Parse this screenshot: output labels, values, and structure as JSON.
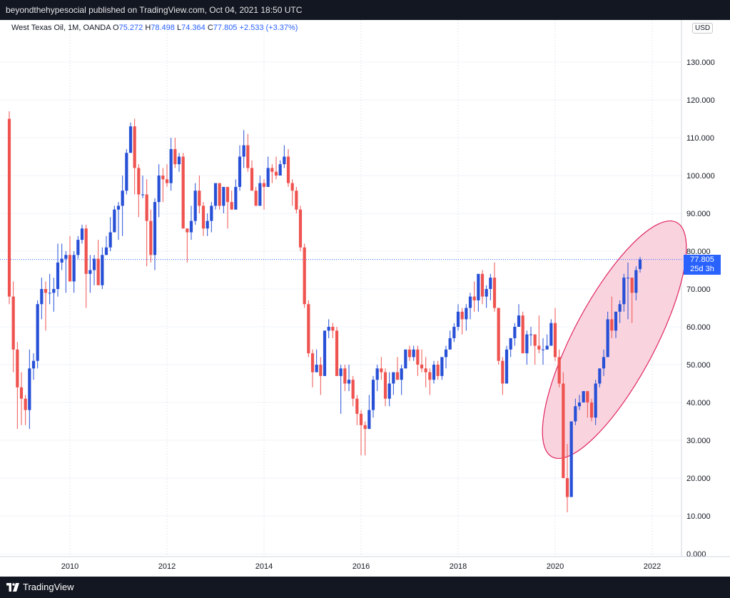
{
  "header": {
    "published_text": "beyondthehypesocial published on TradingView.com, Oct 04, 2021 18:50 UTC"
  },
  "legend": {
    "symbol": "West Texas Oil, 1M, OANDA",
    "o_label": "O",
    "o_value": "75.272",
    "h_label": "H",
    "h_value": "78.498",
    "l_label": "L",
    "l_value": "74.364",
    "c_label": "C",
    "c_value": "77.805",
    "change": "+2.533 (+3.37%)"
  },
  "currency": "USD",
  "price_tag": {
    "price": "77.805",
    "countdown": "25d 3h"
  },
  "footer": {
    "brand": "TradingView"
  },
  "colors": {
    "up": "#2750d6",
    "down": "#ef5350",
    "ellipse_fill": "#f8cdd9",
    "ellipse_stroke": "#e0245e",
    "accent": "#2962ff"
  },
  "chart_data": {
    "type": "candlestick",
    "interval": "1M",
    "x_ticks": [
      "2010",
      "2012",
      "2014",
      "2016",
      "2018",
      "2020",
      "2022"
    ],
    "y_ticks": [
      "0.000",
      "10.000",
      "20.000",
      "30.000",
      "40.000",
      "50.000",
      "60.000",
      "70.000",
      "80.000",
      "90.000",
      "100.000",
      "110.000",
      "120.000",
      "130.000"
    ],
    "ylim": [
      0,
      140
    ],
    "xlim": [
      "2008-09",
      "2022-09"
    ],
    "grid": true,
    "annotation": {
      "type": "ellipse",
      "around": "2020-06 to 2021-10"
    },
    "last_price_line": 77.805,
    "ohlc": [
      [
        "2008-10",
        115,
        117,
        66,
        68
      ],
      [
        "2008-11",
        68,
        72,
        48,
        54
      ],
      [
        "2008-12",
        54,
        56,
        33,
        44
      ],
      [
        "2009-01",
        44,
        48,
        34,
        41
      ],
      [
        "2009-02",
        41,
        42,
        34,
        38
      ],
      [
        "2009-03",
        38,
        54,
        33,
        49
      ],
      [
        "2009-04",
        49,
        53,
        46,
        51
      ],
      [
        "2009-05",
        51,
        67,
        49,
        66
      ],
      [
        "2009-06",
        66,
        73,
        62,
        70
      ],
      [
        "2009-07",
        70,
        72,
        59,
        69
      ],
      [
        "2009-08",
        69,
        74,
        66,
        69
      ],
      [
        "2009-09",
        69,
        73,
        64,
        70
      ],
      [
        "2009-10",
        70,
        82,
        68,
        77
      ],
      [
        "2009-11",
        77,
        82,
        75,
        78
      ],
      [
        "2009-12",
        78,
        80,
        69,
        79
      ],
      [
        "2010-01",
        79,
        84,
        72,
        72
      ],
      [
        "2010-02",
        72,
        80,
        69,
        79
      ],
      [
        "2010-03",
        79,
        84,
        78,
        83
      ],
      [
        "2010-04",
        83,
        87,
        82,
        86
      ],
      [
        "2010-05",
        86,
        87,
        65,
        74
      ],
      [
        "2010-06",
        74,
        79,
        69,
        75
      ],
      [
        "2010-07",
        75,
        79,
        71,
        78
      ],
      [
        "2010-08",
        78,
        83,
        71,
        71
      ],
      [
        "2010-09",
        71,
        81,
        70,
        79
      ],
      [
        "2010-10",
        79,
        84,
        79,
        81
      ],
      [
        "2010-11",
        81,
        89,
        80,
        85
      ],
      [
        "2010-12",
        85,
        92,
        85,
        91
      ],
      [
        "2011-01",
        91,
        93,
        83,
        92
      ],
      [
        "2011-02",
        92,
        100,
        84,
        96
      ],
      [
        "2011-03",
        96,
        107,
        95,
        106
      ],
      [
        "2011-04",
        106,
        114,
        106,
        113
      ],
      [
        "2011-05",
        113,
        115,
        95,
        102
      ],
      [
        "2011-06",
        102,
        103,
        89,
        95
      ],
      [
        "2011-07",
        95,
        100,
        94,
        95
      ],
      [
        "2011-08",
        95,
        99,
        76,
        88
      ],
      [
        "2011-09",
        88,
        91,
        77,
        79
      ],
      [
        "2011-10",
        79,
        94,
        75,
        93
      ],
      [
        "2011-11",
        93,
        103,
        89,
        100
      ],
      [
        "2011-12",
        100,
        102,
        93,
        99
      ],
      [
        "2012-01",
        99,
        103,
        97,
        98
      ],
      [
        "2012-02",
        98,
        110,
        96,
        107
      ],
      [
        "2012-03",
        107,
        110,
        102,
        103
      ],
      [
        "2012-04",
        103,
        106,
        101,
        105
      ],
      [
        "2012-05",
        105,
        106,
        86,
        86
      ],
      [
        "2012-06",
        86,
        86,
        77,
        85
      ],
      [
        "2012-07",
        85,
        92,
        83,
        88
      ],
      [
        "2012-08",
        88,
        98,
        87,
        96
      ],
      [
        "2012-09",
        96,
        100,
        90,
        92
      ],
      [
        "2012-10",
        92,
        93,
        84,
        86
      ],
      [
        "2012-11",
        86,
        90,
        84,
        88
      ],
      [
        "2012-12",
        88,
        93,
        85,
        92
      ],
      [
        "2013-01",
        92,
        98,
        91,
        98
      ],
      [
        "2013-02",
        98,
        98,
        91,
        92
      ],
      [
        "2013-03",
        92,
        97,
        90,
        97
      ],
      [
        "2013-04",
        97,
        97,
        86,
        93
      ],
      [
        "2013-05",
        93,
        96,
        91,
        91
      ],
      [
        "2013-06",
        91,
        99,
        91,
        97
      ],
      [
        "2013-07",
        97,
        108,
        96,
        105
      ],
      [
        "2013-08",
        105,
        112,
        102,
        108
      ],
      [
        "2013-09",
        108,
        111,
        101,
        102
      ],
      [
        "2013-10",
        102,
        104,
        96,
        96
      ],
      [
        "2013-11",
        96,
        97,
        92,
        92
      ],
      [
        "2013-12",
        92,
        100,
        92,
        98
      ],
      [
        "2014-01",
        98,
        99,
        91,
        97
      ],
      [
        "2014-02",
        97,
        105,
        97,
        102
      ],
      [
        "2014-03",
        102,
        103,
        98,
        101
      ],
      [
        "2014-04",
        101,
        105,
        99,
        100
      ],
      [
        "2014-05",
        100,
        104,
        100,
        103
      ],
      [
        "2014-06",
        103,
        108,
        102,
        105
      ],
      [
        "2014-07",
        105,
        107,
        97,
        98
      ],
      [
        "2014-08",
        98,
        99,
        92,
        96
      ],
      [
        "2014-09",
        96,
        97,
        90,
        91
      ],
      [
        "2014-10",
        91,
        92,
        80,
        81
      ],
      [
        "2014-11",
        81,
        82,
        65,
        66
      ],
      [
        "2014-12",
        66,
        67,
        52,
        53
      ],
      [
        "2015-01",
        53,
        54,
        44,
        48
      ],
      [
        "2015-02",
        48,
        54,
        48,
        50
      ],
      [
        "2015-03",
        50,
        52,
        42,
        47
      ],
      [
        "2015-04",
        47,
        59,
        47,
        59
      ],
      [
        "2015-05",
        59,
        62,
        57,
        60
      ],
      [
        "2015-06",
        60,
        61,
        57,
        59
      ],
      [
        "2015-07",
        59,
        60,
        47,
        47
      ],
      [
        "2015-08",
        47,
        50,
        37,
        49
      ],
      [
        "2015-09",
        49,
        50,
        43,
        45
      ],
      [
        "2015-10",
        45,
        50,
        43,
        46
      ],
      [
        "2015-11",
        46,
        47,
        39,
        41
      ],
      [
        "2015-12",
        41,
        42,
        34,
        37
      ],
      [
        "2016-01",
        37,
        38,
        26,
        34
      ],
      [
        "2016-02",
        34,
        35,
        26,
        33
      ],
      [
        "2016-03",
        33,
        42,
        33,
        38
      ],
      [
        "2016-04",
        38,
        47,
        36,
        46
      ],
      [
        "2016-05",
        46,
        50,
        43,
        49
      ],
      [
        "2016-06",
        49,
        52,
        46,
        48
      ],
      [
        "2016-07",
        48,
        49,
        39,
        41
      ],
      [
        "2016-08",
        41,
        48,
        39,
        45
      ],
      [
        "2016-09",
        45,
        48,
        42,
        48
      ],
      [
        "2016-10",
        48,
        52,
        46,
        46
      ],
      [
        "2016-11",
        46,
        50,
        42,
        49
      ],
      [
        "2016-12",
        49,
        54,
        49,
        54
      ],
      [
        "2017-01",
        54,
        55,
        51,
        52
      ],
      [
        "2017-02",
        52,
        55,
        51,
        54
      ],
      [
        "2017-03",
        54,
        55,
        47,
        50
      ],
      [
        "2017-04",
        50,
        54,
        48,
        49
      ],
      [
        "2017-05",
        49,
        52,
        44,
        48
      ],
      [
        "2017-06",
        48,
        49,
        42,
        46
      ],
      [
        "2017-07",
        46,
        51,
        45,
        50
      ],
      [
        "2017-08",
        50,
        51,
        46,
        47
      ],
      [
        "2017-09",
        47,
        52,
        46,
        52
      ],
      [
        "2017-10",
        52,
        55,
        49,
        54
      ],
      [
        "2017-11",
        54,
        59,
        54,
        57
      ],
      [
        "2017-12",
        57,
        61,
        56,
        60
      ],
      [
        "2018-01",
        60,
        66,
        59,
        64
      ],
      [
        "2018-02",
        64,
        65,
        58,
        62
      ],
      [
        "2018-03",
        62,
        66,
        59,
        65
      ],
      [
        "2018-04",
        65,
        69,
        62,
        68
      ],
      [
        "2018-05",
        68,
        72,
        64,
        67
      ],
      [
        "2018-06",
        67,
        74,
        64,
        74
      ],
      [
        "2018-07",
        74,
        75,
        66,
        68
      ],
      [
        "2018-08",
        68,
        71,
        65,
        70
      ],
      [
        "2018-09",
        70,
        74,
        67,
        73
      ],
      [
        "2018-10",
        73,
        77,
        64,
        65
      ],
      [
        "2018-11",
        65,
        65,
        50,
        51
      ],
      [
        "2018-12",
        51,
        52,
        42,
        45
      ],
      [
        "2019-01",
        45,
        55,
        45,
        54
      ],
      [
        "2019-02",
        54,
        57,
        52,
        57
      ],
      [
        "2019-03",
        57,
        61,
        55,
        60
      ],
      [
        "2019-04",
        60,
        66,
        60,
        63
      ],
      [
        "2019-05",
        63,
        64,
        53,
        53
      ],
      [
        "2019-06",
        53,
        59,
        50,
        58
      ],
      [
        "2019-07",
        58,
        60,
        55,
        58
      ],
      [
        "2019-08",
        58,
        58,
        50,
        55
      ],
      [
        "2019-09",
        55,
        63,
        53,
        54
      ],
      [
        "2019-10",
        54,
        57,
        50,
        54
      ],
      [
        "2019-11",
        54,
        58,
        54,
        55
      ],
      [
        "2019-12",
        55,
        62,
        55,
        61
      ],
      [
        "2020-01",
        61,
        65,
        51,
        52
      ],
      [
        "2020-02",
        52,
        54,
        44,
        45
      ],
      [
        "2020-03",
        45,
        48,
        20,
        20
      ],
      [
        "2020-04",
        20,
        29,
        11,
        15
      ],
      [
        "2020-05",
        15,
        35,
        15,
        35
      ],
      [
        "2020-06",
        35,
        41,
        34,
        39
      ],
      [
        "2020-07",
        39,
        42,
        38,
        40
      ],
      [
        "2020-08",
        40,
        43,
        40,
        43
      ],
      [
        "2020-09",
        43,
        43,
        36,
        40
      ],
      [
        "2020-10",
        40,
        41,
        35,
        36
      ],
      [
        "2020-11",
        36,
        46,
        34,
        45
      ],
      [
        "2020-12",
        45,
        49,
        44,
        49
      ],
      [
        "2021-01",
        49,
        54,
        47,
        52
      ],
      [
        "2021-02",
        52,
        64,
        52,
        62
      ],
      [
        "2021-03",
        62,
        68,
        57,
        59
      ],
      [
        "2021-04",
        59,
        64,
        57,
        64
      ],
      [
        "2021-05",
        64,
        67,
        61,
        66
      ],
      [
        "2021-06",
        66,
        74,
        64,
        73
      ],
      [
        "2021-07",
        73,
        77,
        62,
        73
      ],
      [
        "2021-08",
        73,
        73,
        61,
        69
      ],
      [
        "2021-09",
        69,
        76,
        67,
        75
      ],
      [
        "2021-10",
        75.272,
        78.498,
        74.364,
        77.805
      ]
    ]
  }
}
